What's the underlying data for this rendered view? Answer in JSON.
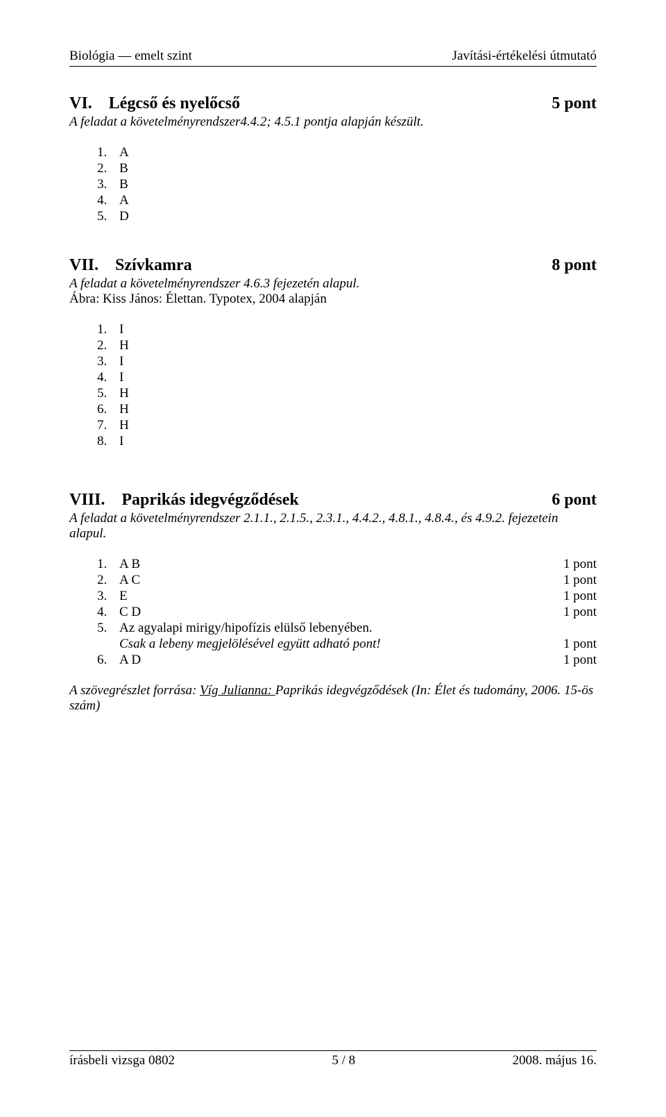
{
  "header": {
    "left": "Biológia — emelt szint",
    "right": "Javítási-értékelési útmutató"
  },
  "sec6": {
    "num": "VI.",
    "title": "Légcső és nyelőcső",
    "points": "5 pont",
    "sub": "A feladat a követelményrendszer4.4.2; 4.5.1 pontja alapján készült.",
    "answers": [
      {
        "n": "1.",
        "v": "A"
      },
      {
        "n": "2.",
        "v": "B"
      },
      {
        "n": "3.",
        "v": "B"
      },
      {
        "n": "4.",
        "v": "A"
      },
      {
        "n": "5.",
        "v": "D"
      }
    ]
  },
  "sec7": {
    "num": "VII.",
    "title": "Szívkamra",
    "points": "8 pont",
    "sub": "A feladat a követelményrendszer 4.6.3 fejezetén alapul.",
    "note": "Ábra: Kiss János: Élettan. Typotex, 2004 alapján",
    "answers": [
      {
        "n": "1.",
        "v": "I"
      },
      {
        "n": "2.",
        "v": "H"
      },
      {
        "n": "3.",
        "v": "I"
      },
      {
        "n": "4.",
        "v": "I"
      },
      {
        "n": "5.",
        "v": "H"
      },
      {
        "n": "6.",
        "v": "H"
      },
      {
        "n": "7.",
        "v": "H"
      },
      {
        "n": "8.",
        "v": "I"
      }
    ]
  },
  "sec8": {
    "num": "VIII.",
    "title": "Paprikás idegvégződések",
    "points": "6 pont",
    "sub": "A feladat a követelményrendszer 2.1.1., 2.1.5., 2.3.1., 4.4.2., 4.8.1., 4.8.4., és 4.9.2. fejezetein alapul.",
    "answers": [
      {
        "n": "1.",
        "v": "A  B",
        "p": "1 pont"
      },
      {
        "n": "2.",
        "v": "A  C",
        "p": "1 pont"
      },
      {
        "n": "3.",
        "v": "E",
        "p": "1 pont"
      },
      {
        "n": "4.",
        "v": "C  D",
        "p": "1 pont"
      },
      {
        "n": "5.",
        "v": "Az agyalapi mirigy/hipofízis elülső lebenyében.",
        "p": ""
      },
      {
        "n": "",
        "v": "Csak a lebeny megjelölésével együtt adható pont!",
        "p": "1 pont",
        "italic": true
      },
      {
        "n": "6.",
        "v": "A  D",
        "p": "1 pont"
      }
    ],
    "source_prefix": "A szövegrészlet forrása: ",
    "source_underline": "Víg Julianna: ",
    "source_rest": "Paprikás idegvégződések (In: Élet és tudomány, 2006. 15-ös szám)"
  },
  "footer": {
    "left": "írásbeli vizsga 0802",
    "center": "5 / 8",
    "right": "2008. május 16."
  }
}
